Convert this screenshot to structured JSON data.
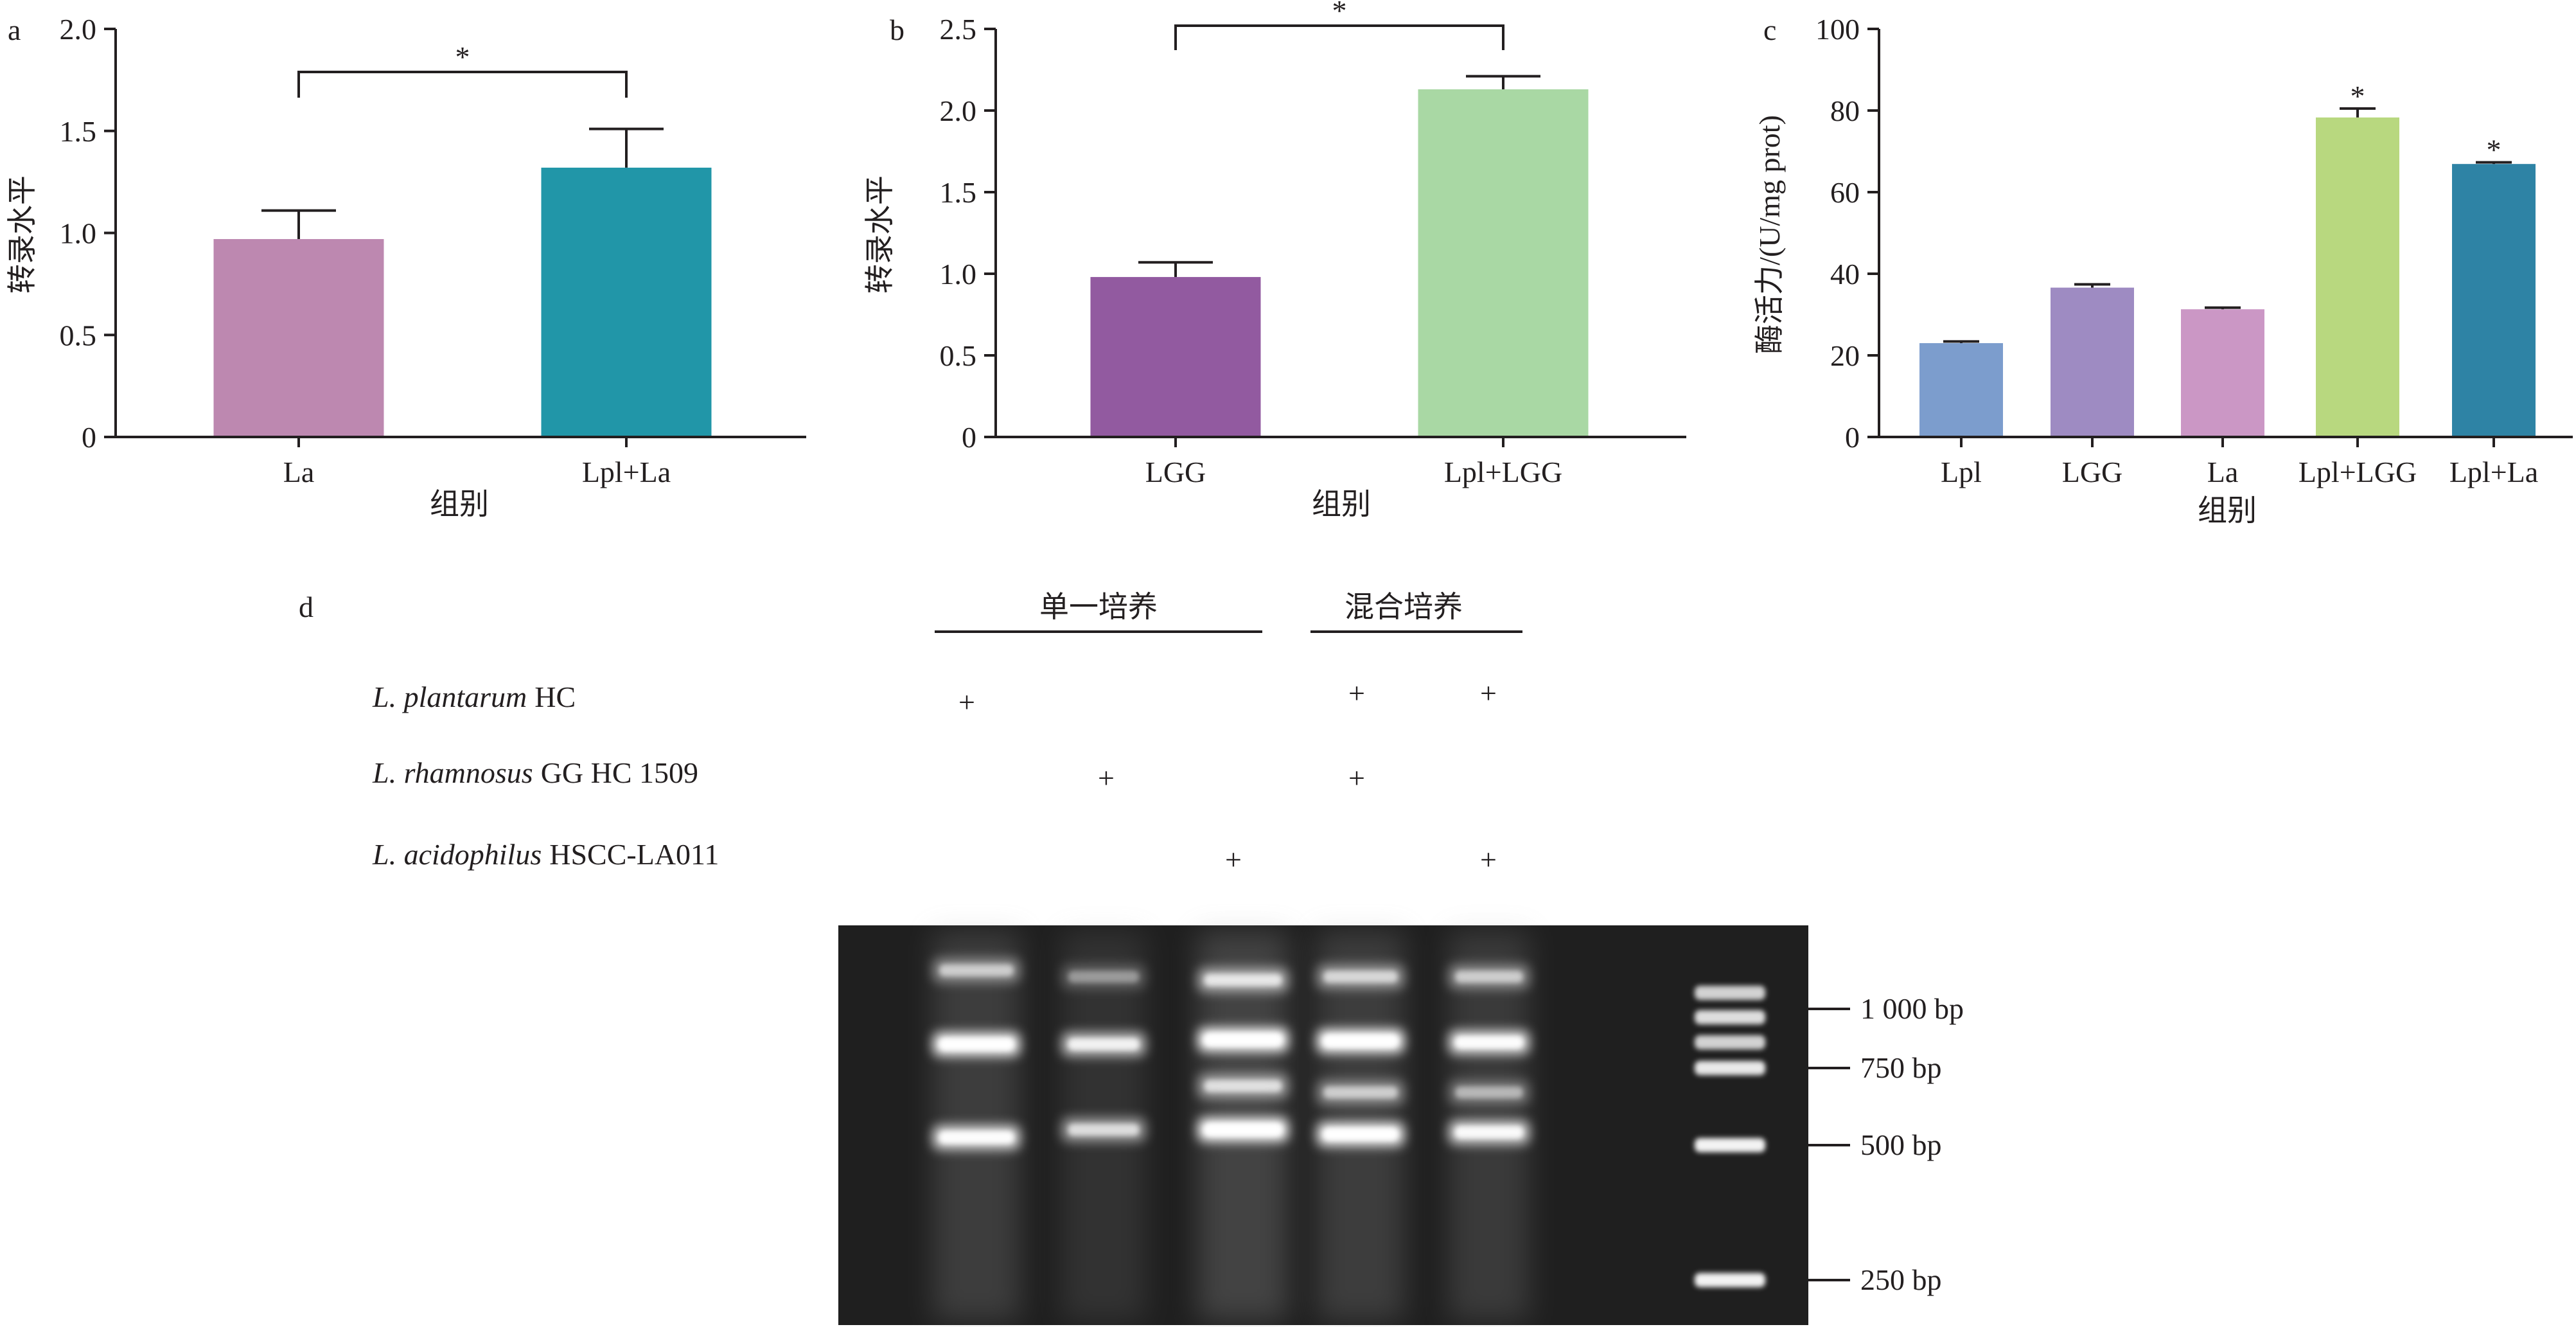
{
  "chart_data": [
    {
      "panel": "a",
      "type": "bar",
      "categories": [
        "La",
        "Lpl+La"
      ],
      "values": [
        0.97,
        1.32
      ],
      "errors": [
        0.14,
        0.19
      ],
      "colors": [
        "#bd88b0",
        "#2196a8"
      ],
      "ylabel": "转录水平",
      "xlabel": "组别",
      "ylim": [
        0,
        2.0
      ],
      "yticks": [
        "0",
        "0.5",
        "1.0",
        "1.5",
        "2.0"
      ],
      "significance": {
        "label": "*",
        "between": [
          "La",
          "Lpl+La"
        ]
      }
    },
    {
      "panel": "b",
      "type": "bar",
      "categories": [
        "LGG",
        "Lpl+LGG"
      ],
      "values": [
        0.98,
        2.13
      ],
      "errors": [
        0.09,
        0.08
      ],
      "colors": [
        "#925aa0",
        "#a9d8a4"
      ],
      "ylabel": "转录水平",
      "xlabel": "组别",
      "ylim": [
        0,
        2.5
      ],
      "yticks": [
        "0",
        "0.5",
        "1.0",
        "1.5",
        "2.0",
        "2.5"
      ],
      "significance": {
        "label": "*",
        "between": [
          "LGG",
          "Lpl+LGG"
        ]
      }
    },
    {
      "panel": "c",
      "type": "bar",
      "categories": [
        "Lpl",
        "LGG",
        "La",
        "Lpl+LGG",
        "Lpl+La"
      ],
      "values": [
        23,
        36.6,
        31.3,
        78.3,
        66.9
      ],
      "errors": [
        0.4,
        0.8,
        0.4,
        2.2,
        0.4
      ],
      "colors": [
        "#7c9dcd",
        "#9e8bc2",
        "#cb97c5",
        "#b8d87f",
        "#2e83a5"
      ],
      "stars": [
        "",
        "",
        "",
        "*",
        "*"
      ],
      "ylabel": "酶活力/(U/mg prot)",
      "xlabel": "组别",
      "ylim": [
        0,
        100
      ],
      "yticks": [
        "0",
        "20",
        "40",
        "60",
        "80",
        "100"
      ]
    }
  ],
  "panel_d": {
    "letter": "d",
    "group_single": "单一培养",
    "group_mixed": "混合培养",
    "strains": [
      {
        "species": "L. plantarum",
        "strain": "HC",
        "marks": [
          "+",
          "",
          "",
          "+",
          "+"
        ]
      },
      {
        "species": "L. rhamnosus",
        "strain": "GG HC 1509",
        "marks": [
          "",
          "+",
          "",
          "+",
          ""
        ]
      },
      {
        "species": "L. acidophilus",
        "strain": "HSCC-LA011",
        "marks": [
          "",
          "",
          "+",
          "",
          "+"
        ]
      }
    ],
    "markers": [
      "1 000 bp",
      "750 bp",
      "500 bp",
      "250 bp"
    ]
  }
}
